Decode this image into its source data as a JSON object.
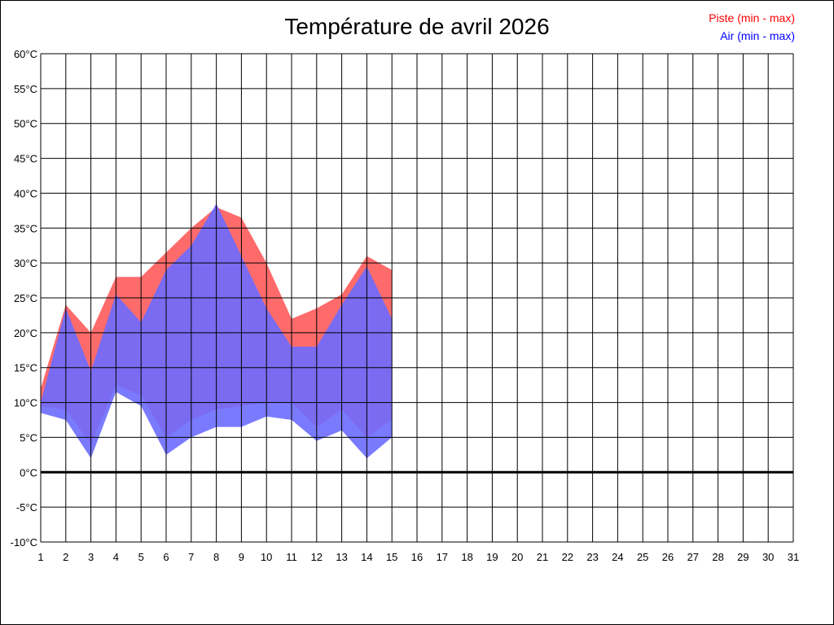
{
  "chart_data": {
    "type": "area",
    "title": "Température de avril 2026",
    "x": [
      1,
      2,
      3,
      4,
      5,
      6,
      7,
      8,
      9,
      10,
      11,
      12,
      13,
      14,
      15,
      16,
      17,
      18,
      19,
      20,
      21,
      22,
      23,
      24,
      25,
      26,
      27,
      28,
      29,
      30,
      31
    ],
    "ylim": [
      -10,
      60
    ],
    "yticks": [
      "60°C",
      "55°C",
      "50°C",
      "45°C",
      "40°C",
      "35°C",
      "30°C",
      "25°C",
      "20°C",
      "15°C",
      "10°C",
      "5°C",
      "0°C",
      "-5°C",
      "-10°C"
    ],
    "grid": true,
    "legend_placement": "top-right",
    "series": [
      {
        "name": "Piste (min - max)",
        "color": "#ff6b6b",
        "text_color": "#ff0000",
        "min": [
          9.5,
          9,
          4,
          12.5,
          11,
          5,
          7.5,
          9,
          9.5,
          10,
          10,
          6.5,
          9,
          5,
          7.5
        ],
        "max": [
          12,
          24,
          20,
          28,
          28,
          31.5,
          35,
          38,
          36.5,
          30,
          22,
          23.5,
          25.5,
          31,
          29
        ]
      },
      {
        "name": "Air (min - max)",
        "color": "#6b6bff",
        "text_color": "#0000ff",
        "min": [
          8.5,
          7.5,
          2,
          11.5,
          9.5,
          2.5,
          5,
          6.5,
          6.5,
          8,
          7.5,
          4.5,
          6,
          2,
          5
        ],
        "max": [
          10,
          23.5,
          14.5,
          25.5,
          21.5,
          29,
          32.5,
          38.5,
          31,
          23.5,
          18,
          18,
          24,
          29.5,
          22
        ]
      }
    ],
    "zero_line": 0
  }
}
